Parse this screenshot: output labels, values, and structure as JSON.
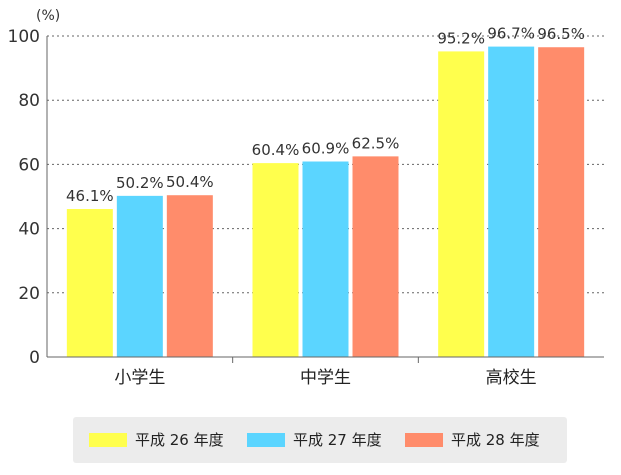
{
  "chart_data": {
    "type": "bar",
    "unit_label": "(%)",
    "categories": [
      "小学生",
      "中学生",
      "高校生"
    ],
    "series": [
      {
        "name": "平成 26 年度",
        "color": "#ffff4d",
        "values": [
          46.1,
          60.4,
          95.2
        ],
        "labels": [
          "46.1%",
          "60.4%",
          "95.2%"
        ]
      },
      {
        "name": "平成 27 年度",
        "color": "#5bd5ff",
        "values": [
          50.2,
          60.9,
          96.7
        ],
        "labels": [
          "50.2%",
          "60.9%",
          "96.7%"
        ]
      },
      {
        "name": "平成 28 年度",
        "color": "#ff8c6b",
        "values": [
          50.4,
          62.5,
          96.5
        ],
        "labels": [
          "50.4%",
          "62.5%",
          "96.5%"
        ]
      }
    ],
    "ylim": [
      0,
      100
    ],
    "yticks": [
      0,
      20,
      40,
      60,
      80,
      100
    ],
    "grid": true,
    "legend_position": "bottom"
  }
}
